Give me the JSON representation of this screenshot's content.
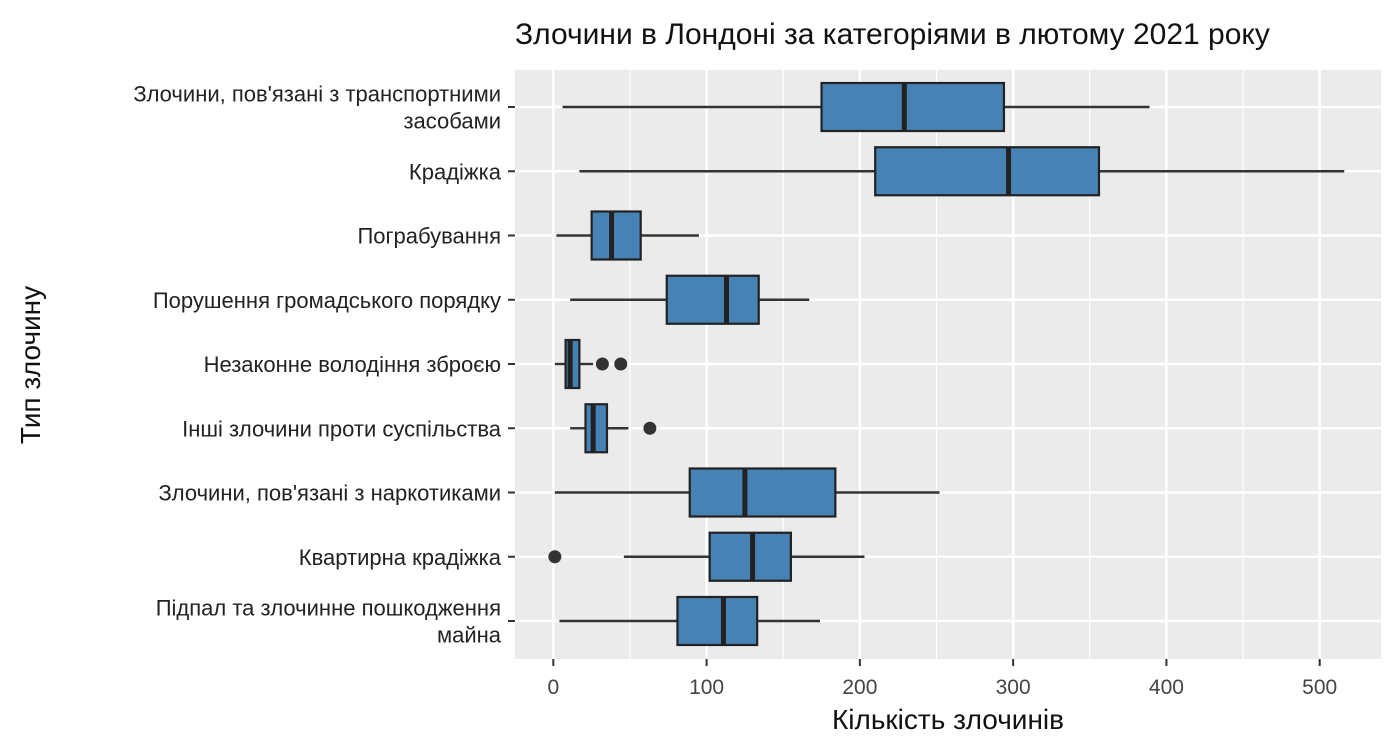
{
  "chart_data": {
    "type": "boxplot",
    "title": "Злочини в Лондоні за категоріями в лютому 2021 року",
    "xlabel": "Кількість злочинів",
    "ylabel": "Тип злочину",
    "xlim": [
      -25,
      540
    ],
    "xticks": [
      "0",
      "100",
      "200",
      "300",
      "400",
      "500"
    ],
    "grid": true,
    "colors": {
      "box_fill": "#4682b4",
      "box_stroke": "#222222",
      "panel": "#ebebeb",
      "grid": "#ffffff"
    },
    "categories": [
      {
        "label_lines": [
          "Злочини, пов'язані з транспортними",
          "засобами"
        ],
        "whisker_low": 6,
        "q1": 175,
        "median": 229,
        "q3": 294,
        "whisker_high": 389,
        "outliers": []
      },
      {
        "label_lines": [
          "Крадіжка"
        ],
        "whisker_low": 17,
        "q1": 210,
        "median": 297,
        "q3": 356,
        "whisker_high": 516,
        "outliers": []
      },
      {
        "label_lines": [
          "Пограбування"
        ],
        "whisker_low": 2,
        "q1": 25,
        "median": 38,
        "q3": 57,
        "whisker_high": 95,
        "outliers": []
      },
      {
        "label_lines": [
          "Порушення громадського порядку"
        ],
        "whisker_low": 11,
        "q1": 74,
        "median": 113,
        "q3": 134,
        "whisker_high": 167,
        "outliers": []
      },
      {
        "label_lines": [
          "Незаконне володіння зброєю"
        ],
        "whisker_low": 1,
        "q1": 8,
        "median": 11,
        "q3": 17,
        "whisker_high": 26,
        "outliers": [
          32,
          44
        ]
      },
      {
        "label_lines": [
          "Інші злочини проти суспільства"
        ],
        "whisker_low": 11,
        "q1": 21,
        "median": 26,
        "q3": 35,
        "whisker_high": 49,
        "outliers": [
          63
        ]
      },
      {
        "label_lines": [
          "Злочини, пов'язані з наркотиками"
        ],
        "whisker_low": 1,
        "q1": 89,
        "median": 125,
        "q3": 184,
        "whisker_high": 252,
        "outliers": []
      },
      {
        "label_lines": [
          "Квартирна крадіжка"
        ],
        "whisker_low": 46,
        "q1": 102,
        "median": 130,
        "q3": 155,
        "whisker_high": 203,
        "outliers": [
          1
        ]
      },
      {
        "label_lines": [
          "Підпал та злочинне пошкодження",
          "майна"
        ],
        "whisker_low": 4,
        "q1": 81,
        "median": 111,
        "q3": 133,
        "whisker_high": 174,
        "outliers": []
      }
    ]
  }
}
